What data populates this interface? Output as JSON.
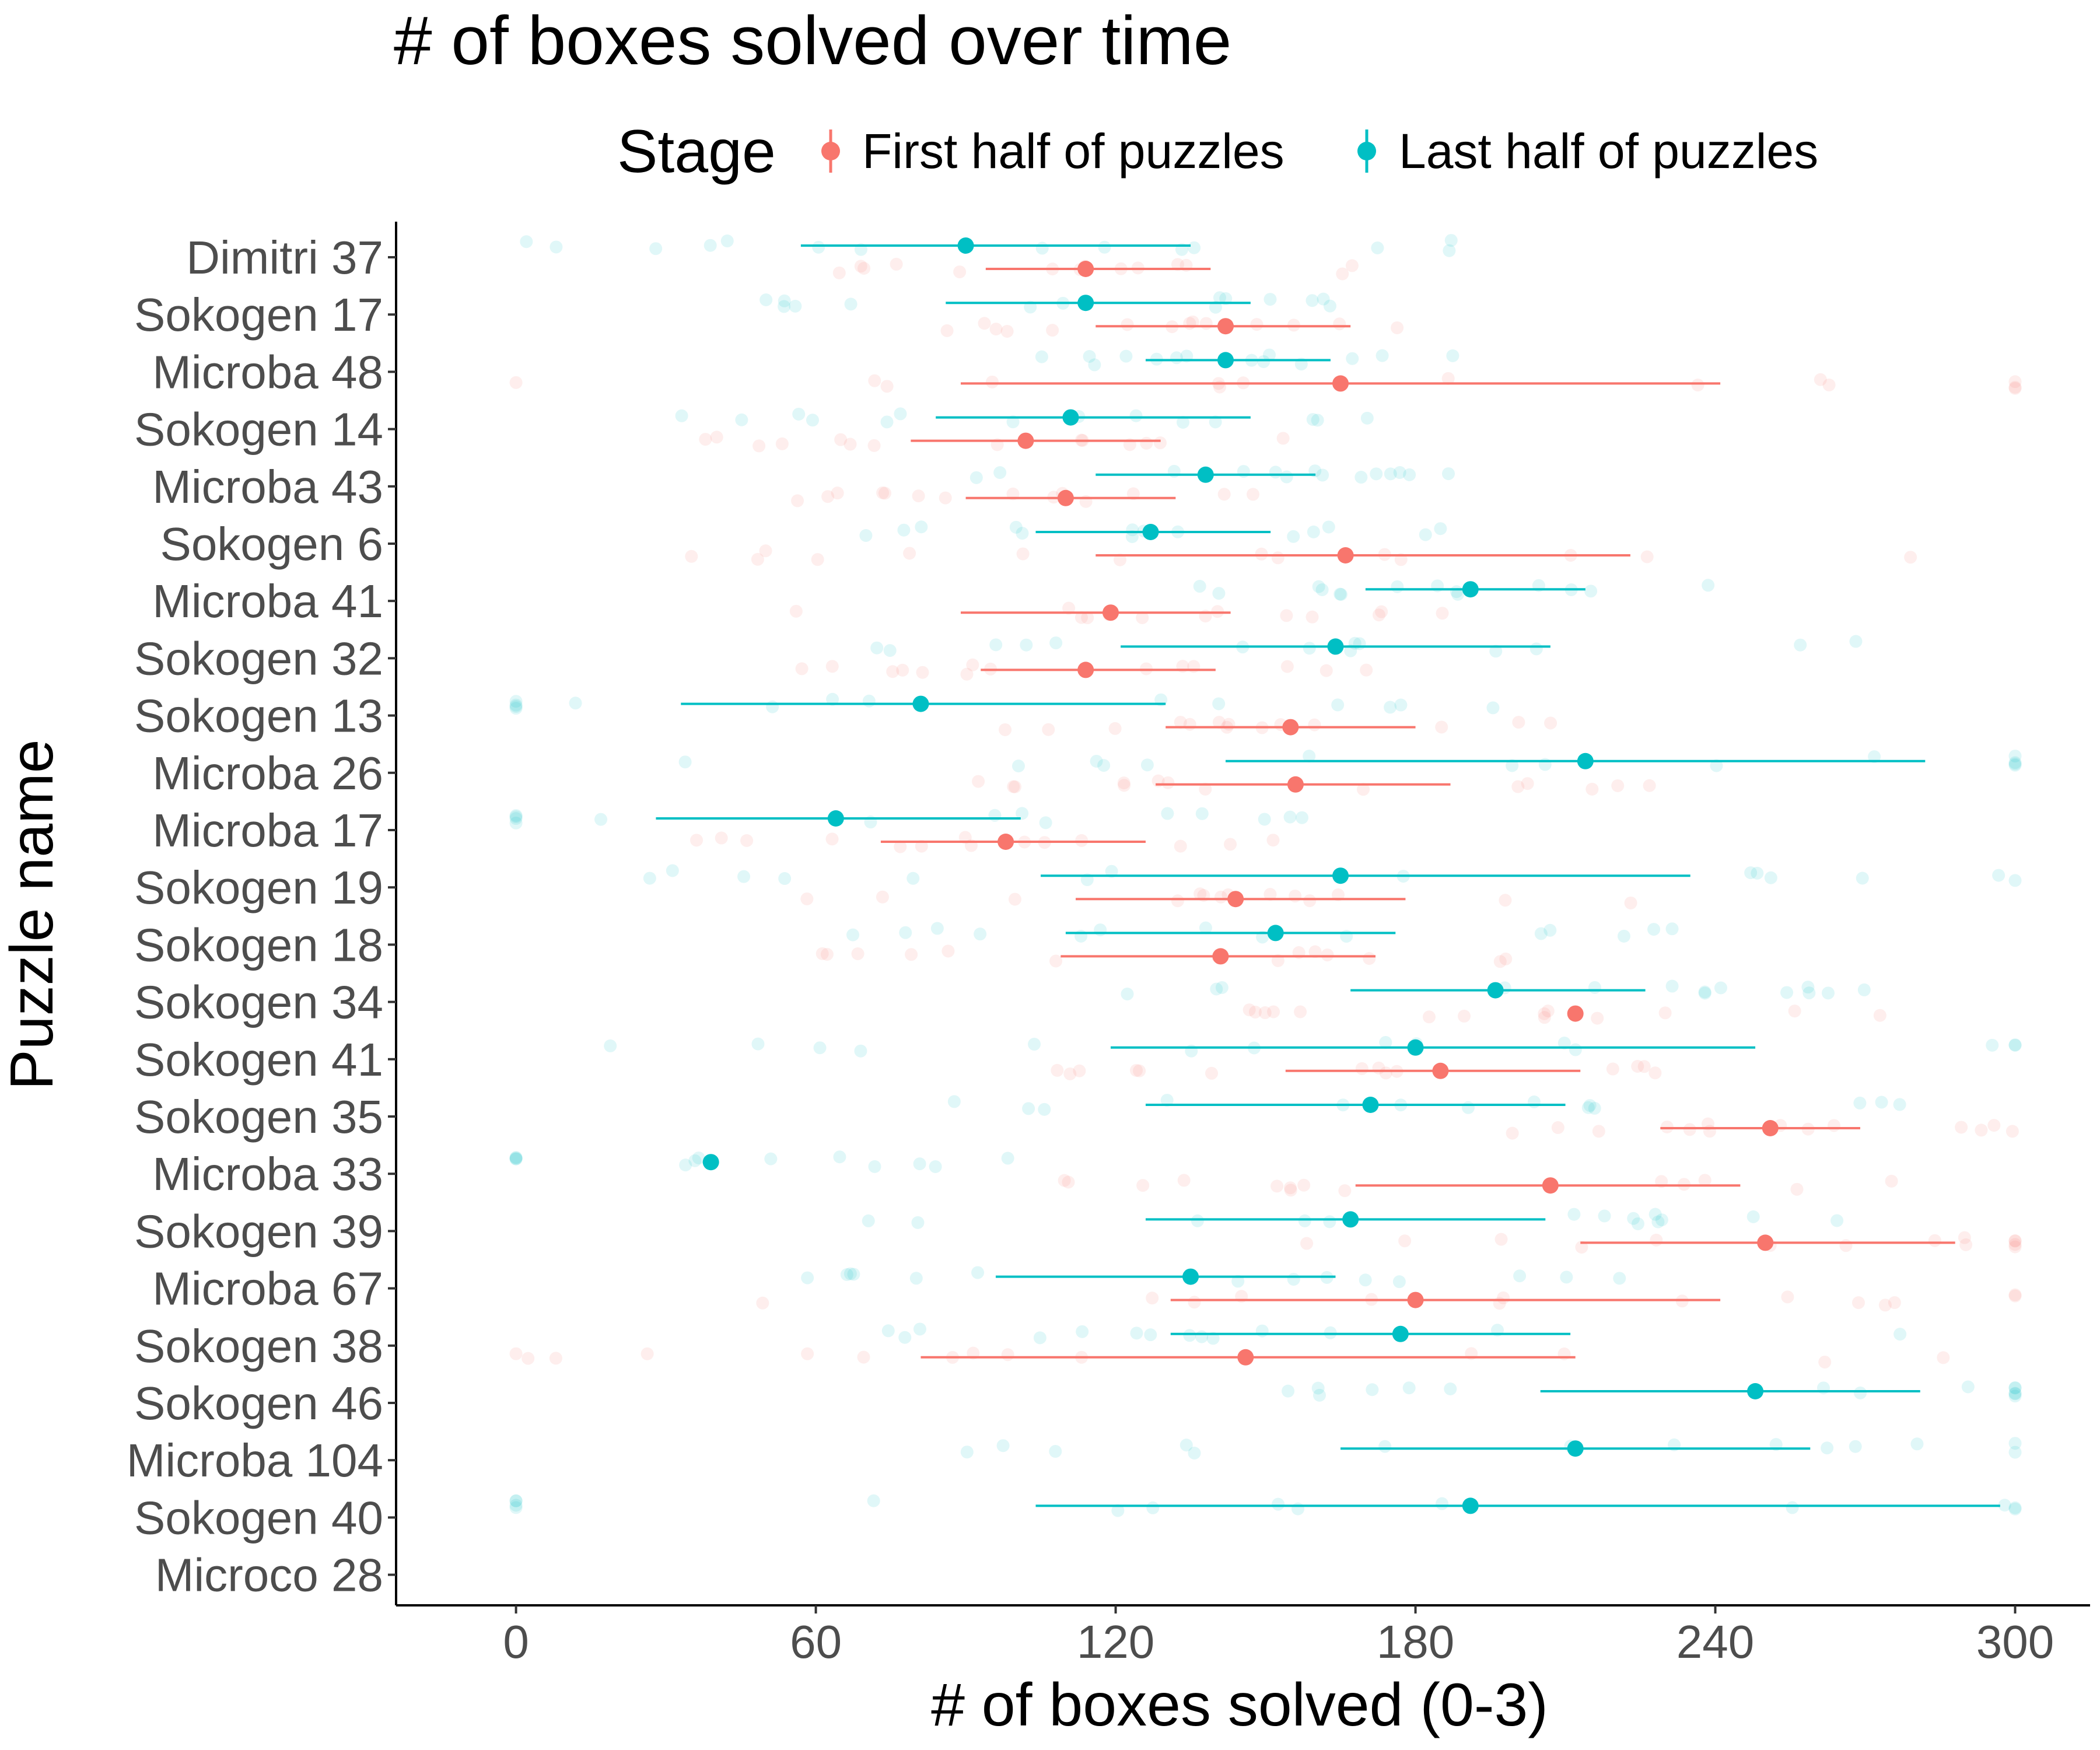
{
  "chart_data": {
    "type": "dot-errorbar",
    "title": "# of boxes solved over time",
    "xlabel": "# of boxes solved (0-3)",
    "ylabel": "Puzzle name",
    "xlim": [
      -24,
      315
    ],
    "xticks": [
      0,
      60,
      120,
      180,
      240,
      300
    ],
    "grid": false,
    "legend": {
      "title": "Stage",
      "position": "top",
      "entries": [
        {
          "name": "First half of puzzles",
          "color": "#F8766D"
        },
        {
          "name": "Last half of puzzles",
          "color": "#00BFC4"
        }
      ]
    },
    "categories": [
      "Dimitri 37",
      "Sokogen 17",
      "Microba 48",
      "Sokogen 14",
      "Microba 43",
      "Sokogen 6",
      "Microba 41",
      "Sokogen 32",
      "Sokogen 13",
      "Microba 26",
      "Microba 17",
      "Sokogen 19",
      "Sokogen 18",
      "Sokogen 34",
      "Sokogen 41",
      "Sokogen 35",
      "Microba 33",
      "Sokogen 39",
      "Microba 67",
      "Sokogen 38",
      "Sokogen 46",
      "Microba 104",
      "Sokogen 40",
      "Microco 28"
    ],
    "series": [
      {
        "name": "First half of puzzles",
        "color": "#F8766D",
        "points": [
          {
            "category": "Dimitri 37",
            "mean": 114,
            "low": 94,
            "high": 139
          },
          {
            "category": "Sokogen 17",
            "mean": 142,
            "low": 116,
            "high": 167
          },
          {
            "category": "Microba 48",
            "mean": 165,
            "low": 89,
            "high": 241
          },
          {
            "category": "Sokogen 14",
            "mean": 102,
            "low": 79,
            "high": 129
          },
          {
            "category": "Microba 43",
            "mean": 110,
            "low": 90,
            "high": 132
          },
          {
            "category": "Sokogen 6",
            "mean": 166,
            "low": 116,
            "high": 223
          },
          {
            "category": "Microba 41",
            "mean": 119,
            "low": 89,
            "high": 143
          },
          {
            "category": "Sokogen 32",
            "mean": 114,
            "low": 93,
            "high": 140
          },
          {
            "category": "Sokogen 13",
            "mean": 155,
            "low": 130,
            "high": 180
          },
          {
            "category": "Microba 26",
            "mean": 156,
            "low": 128,
            "high": 187
          },
          {
            "category": "Microba 17",
            "mean": 98,
            "low": 73,
            "high": 126
          },
          {
            "category": "Sokogen 19",
            "mean": 144,
            "low": 112,
            "high": 178
          },
          {
            "category": "Sokogen 18",
            "mean": 141,
            "low": 109,
            "high": 172
          },
          {
            "category": "Sokogen 34",
            "mean": 212,
            "low": null,
            "high": null
          },
          {
            "category": "Sokogen 41",
            "mean": 185,
            "low": 154,
            "high": 213
          },
          {
            "category": "Sokogen 35",
            "mean": 251,
            "low": 229,
            "high": 269
          },
          {
            "category": "Microba 33",
            "mean": 207,
            "low": 168,
            "high": 245
          },
          {
            "category": "Sokogen 39",
            "mean": 250,
            "low": 213,
            "high": 288
          },
          {
            "category": "Microba 67",
            "mean": 180,
            "low": 131,
            "high": 241
          },
          {
            "category": "Sokogen 38",
            "mean": 146,
            "low": 81,
            "high": 212
          }
        ]
      },
      {
        "name": "Last half of puzzles",
        "color": "#00BFC4",
        "points": [
          {
            "category": "Dimitri 37",
            "mean": 90,
            "low": 57,
            "high": 135
          },
          {
            "category": "Sokogen 17",
            "mean": 114,
            "low": 86,
            "high": 147
          },
          {
            "category": "Microba 48",
            "mean": 142,
            "low": 126,
            "high": 163
          },
          {
            "category": "Sokogen 14",
            "mean": 111,
            "low": 84,
            "high": 147
          },
          {
            "category": "Microba 43",
            "mean": 138,
            "low": 116,
            "high": 160
          },
          {
            "category": "Sokogen 6",
            "mean": 127,
            "low": 104,
            "high": 151
          },
          {
            "category": "Microba 41",
            "mean": 191,
            "low": 170,
            "high": 214
          },
          {
            "category": "Sokogen 32",
            "mean": 164,
            "low": 121,
            "high": 207
          },
          {
            "category": "Sokogen 13",
            "mean": 81,
            "low": 33,
            "high": 130
          },
          {
            "category": "Microba 26",
            "mean": 214,
            "low": 142,
            "high": 282
          },
          {
            "category": "Microba 17",
            "mean": 64,
            "low": 28,
            "high": 101
          },
          {
            "category": "Sokogen 19",
            "mean": 165,
            "low": 105,
            "high": 235
          },
          {
            "category": "Sokogen 18",
            "mean": 152,
            "low": 110,
            "high": 176
          },
          {
            "category": "Sokogen 34",
            "mean": 196,
            "low": 167,
            "high": 226
          },
          {
            "category": "Sokogen 41",
            "mean": 180,
            "low": 119,
            "high": 248
          },
          {
            "category": "Sokogen 35",
            "mean": 171,
            "low": 126,
            "high": 210
          },
          {
            "category": "Microba 33",
            "mean": 39,
            "low": null,
            "high": null
          },
          {
            "category": "Sokogen 39",
            "mean": 167,
            "low": 126,
            "high": 206
          },
          {
            "category": "Microba 67",
            "mean": 135,
            "low": 96,
            "high": 164
          },
          {
            "category": "Sokogen 38",
            "mean": 177,
            "low": 131,
            "high": 211
          },
          {
            "category": "Sokogen 46",
            "mean": 248,
            "low": 205,
            "high": 281
          },
          {
            "category": "Microba 104",
            "mean": 212,
            "low": 165,
            "high": 259
          },
          {
            "category": "Sokogen 40",
            "mean": 191,
            "low": 104,
            "high": 297
          }
        ]
      }
    ]
  }
}
